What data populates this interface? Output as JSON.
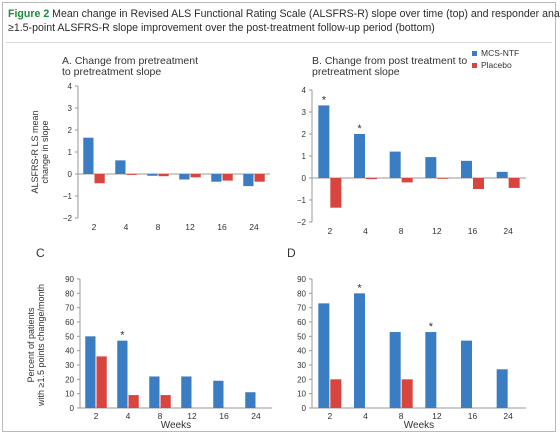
{
  "caption": {
    "figure_label": "Figure 2",
    "line1": "Mean change in Revised ALS Functional Rating Scale (ALSFRS-R) slope over time (top) and responder analyses:",
    "line2": "≥1.5-point ALSFRS-R slope improvement over the post-treatment follow-up period (bottom)"
  },
  "colors": {
    "mcs_ntf": "#3a7dc2",
    "placebo": "#d8443e",
    "axis": "#9a9a9a",
    "text": "#333333"
  },
  "legend": [
    {
      "name": "MCS-NTF",
      "color": "#3a7dc2"
    },
    {
      "name": "Placebo",
      "color": "#d8443e"
    }
  ],
  "chart_data": [
    {
      "panel": "A",
      "type": "bar",
      "title_lines": [
        "A. Change from pretreatment",
        "to pretreatment slope"
      ],
      "ylabel_lines": [
        "ALSFRS-R LS mean",
        "change in slope"
      ],
      "xlabel": "",
      "categories": [
        "2",
        "4",
        "8",
        "12",
        "16",
        "24"
      ],
      "ylim": [
        -2,
        4
      ],
      "yticks": [
        -2,
        -1,
        0,
        1,
        2,
        3,
        4
      ],
      "series": [
        {
          "name": "MCS-NTF",
          "values": [
            1.65,
            0.62,
            -0.08,
            -0.25,
            -0.35,
            -0.55
          ]
        },
        {
          "name": "Placebo",
          "values": [
            -0.42,
            -0.04,
            -0.1,
            -0.15,
            -0.3,
            -0.35
          ]
        }
      ],
      "asterisks": [],
      "grid": false
    },
    {
      "panel": "B",
      "type": "bar",
      "title_lines": [
        "B. Change from post treatment to",
        "pretreatment slope"
      ],
      "ylabel_lines": [],
      "xlabel": "",
      "categories": [
        "2",
        "4",
        "8",
        "12",
        "16",
        "24"
      ],
      "ylim": [
        -2,
        4
      ],
      "yticks": [
        -2,
        -1,
        0,
        1,
        2,
        3,
        4
      ],
      "series": [
        {
          "name": "MCS-NTF",
          "values": [
            3.3,
            2.0,
            1.2,
            0.95,
            0.78,
            0.28
          ]
        },
        {
          "name": "Placebo",
          "values": [
            -1.35,
            -0.05,
            -0.2,
            -0.02,
            -0.5,
            -0.45
          ]
        }
      ],
      "asterisks": [
        {
          "series": 0,
          "index": 0
        },
        {
          "series": 0,
          "index": 1
        }
      ],
      "legend_position": "top-right",
      "grid": false
    },
    {
      "panel": "C",
      "type": "bar",
      "title_lines": [
        "C"
      ],
      "ylabel_lines": [
        "Percent of patients",
        "with ≥1.5 points change/month"
      ],
      "xlabel": "Weeks",
      "categories": [
        "2",
        "4",
        "8",
        "12",
        "16",
        "24"
      ],
      "ylim": [
        0,
        90
      ],
      "yticks": [
        0,
        10,
        20,
        30,
        40,
        50,
        60,
        70,
        80,
        90
      ],
      "series": [
        {
          "name": "MCS-NTF",
          "values": [
            50,
            47,
            22,
            22,
            19,
            11
          ]
        },
        {
          "name": "Placebo",
          "values": [
            36,
            9,
            9,
            0,
            0,
            0
          ]
        }
      ],
      "asterisks": [
        {
          "series": 0,
          "index": 1
        }
      ],
      "grid": false
    },
    {
      "panel": "D",
      "type": "bar",
      "title_lines": [
        "D"
      ],
      "ylabel_lines": [],
      "xlabel": "Weeks",
      "categories": [
        "2",
        "4",
        "8",
        "12",
        "16",
        "24"
      ],
      "ylim": [
        0,
        90
      ],
      "yticks": [
        0,
        10,
        20,
        30,
        40,
        50,
        60,
        70,
        80,
        90
      ],
      "series": [
        {
          "name": "MCS-NTF",
          "values": [
            73,
            80,
            53,
            53,
            47,
            27
          ]
        },
        {
          "name": "Placebo",
          "values": [
            20,
            0,
            20,
            0,
            0,
            0
          ]
        }
      ],
      "asterisks": [
        {
          "series": 0,
          "index": 1
        },
        {
          "series": 0,
          "index": 3
        }
      ],
      "grid": false
    }
  ]
}
